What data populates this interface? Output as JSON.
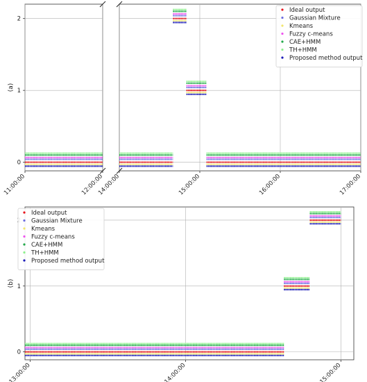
{
  "series_styles": [
    {
      "name": "Ideal output",
      "color": "#e8141c",
      "offset": 0.0
    },
    {
      "name": "Gaussian Mixture",
      "color": "#6e6ee0",
      "offset": 0.04
    },
    {
      "name": "Kmeans",
      "color": "#f2e66e",
      "offset": -0.03
    },
    {
      "name": "Fuzzy c-means",
      "color": "#ef55ef",
      "offset": 0.065
    },
    {
      "name": "CAE+HMM",
      "color": "#22a84a",
      "offset": 0.1
    },
    {
      "name": "TH+HMM",
      "color": "#8ef08e",
      "offset": 0.125
    },
    {
      "name": "Proposed method output",
      "color": "#1c1cb8",
      "offset": -0.055
    }
  ],
  "chart_data": [
    {
      "type": "scatter",
      "panel_label": "(a)",
      "ylabel": "(a)",
      "yticks": [
        0,
        1,
        2
      ],
      "ylim": [
        -0.12,
        2.2
      ],
      "x_broken_axis": true,
      "segments": [
        {
          "xlim": [
            "11:00:00",
            "12:00:00"
          ],
          "xticks": [
            "11:00:00",
            "12:00:00"
          ]
        },
        {
          "xlim": [
            "14:00:00",
            "17:00:00"
          ],
          "xticks": [
            "14:00:00",
            "15:00:00",
            "16:00:00",
            "17:00:00"
          ]
        }
      ],
      "legend": {
        "placement": "top-right",
        "entries": [
          "Ideal output",
          "Gaussian Mixture",
          "Kmeans",
          "Fuzzy c-means",
          "CAE+HMM",
          "TH+HMM",
          "Proposed method output"
        ]
      },
      "grid": true,
      "states": [
        {
          "from": "11:00:00",
          "to": "12:00:00",
          "value": 0
        },
        {
          "from": "14:00:00",
          "to": "14:40:00",
          "value": 0
        },
        {
          "from": "14:40:00",
          "to": "14:50:00",
          "value": 2
        },
        {
          "from": "14:50:00",
          "to": "15:05:00",
          "value": 1
        },
        {
          "from": "15:05:00",
          "to": "17:00:00",
          "value": 0
        }
      ]
    },
    {
      "type": "scatter",
      "panel_label": "(b)",
      "ylabel": "(b)",
      "yticks": [
        0,
        1,
        2
      ],
      "ylim": [
        -0.12,
        2.2
      ],
      "x_broken_axis": false,
      "segments": [
        {
          "xlim": [
            "12:58:00",
            "15:05:00"
          ],
          "xticks": [
            "13:00:00",
            "14:00:00",
            "15:00:00"
          ]
        }
      ],
      "legend": {
        "placement": "top-left",
        "entries": [
          "Ideal output",
          "Gaussian Mixture",
          "Kmeans",
          "Fuzzy c-means",
          "CAE+HMM",
          "TH+HMM",
          "Proposed method output"
        ]
      },
      "grid": true,
      "states": [
        {
          "from": "12:58:00",
          "to": "14:38:00",
          "value": 0
        },
        {
          "from": "14:38:00",
          "to": "14:48:00",
          "value": 1
        },
        {
          "from": "14:48:00",
          "to": "15:00:00",
          "value": 2
        }
      ]
    }
  ]
}
